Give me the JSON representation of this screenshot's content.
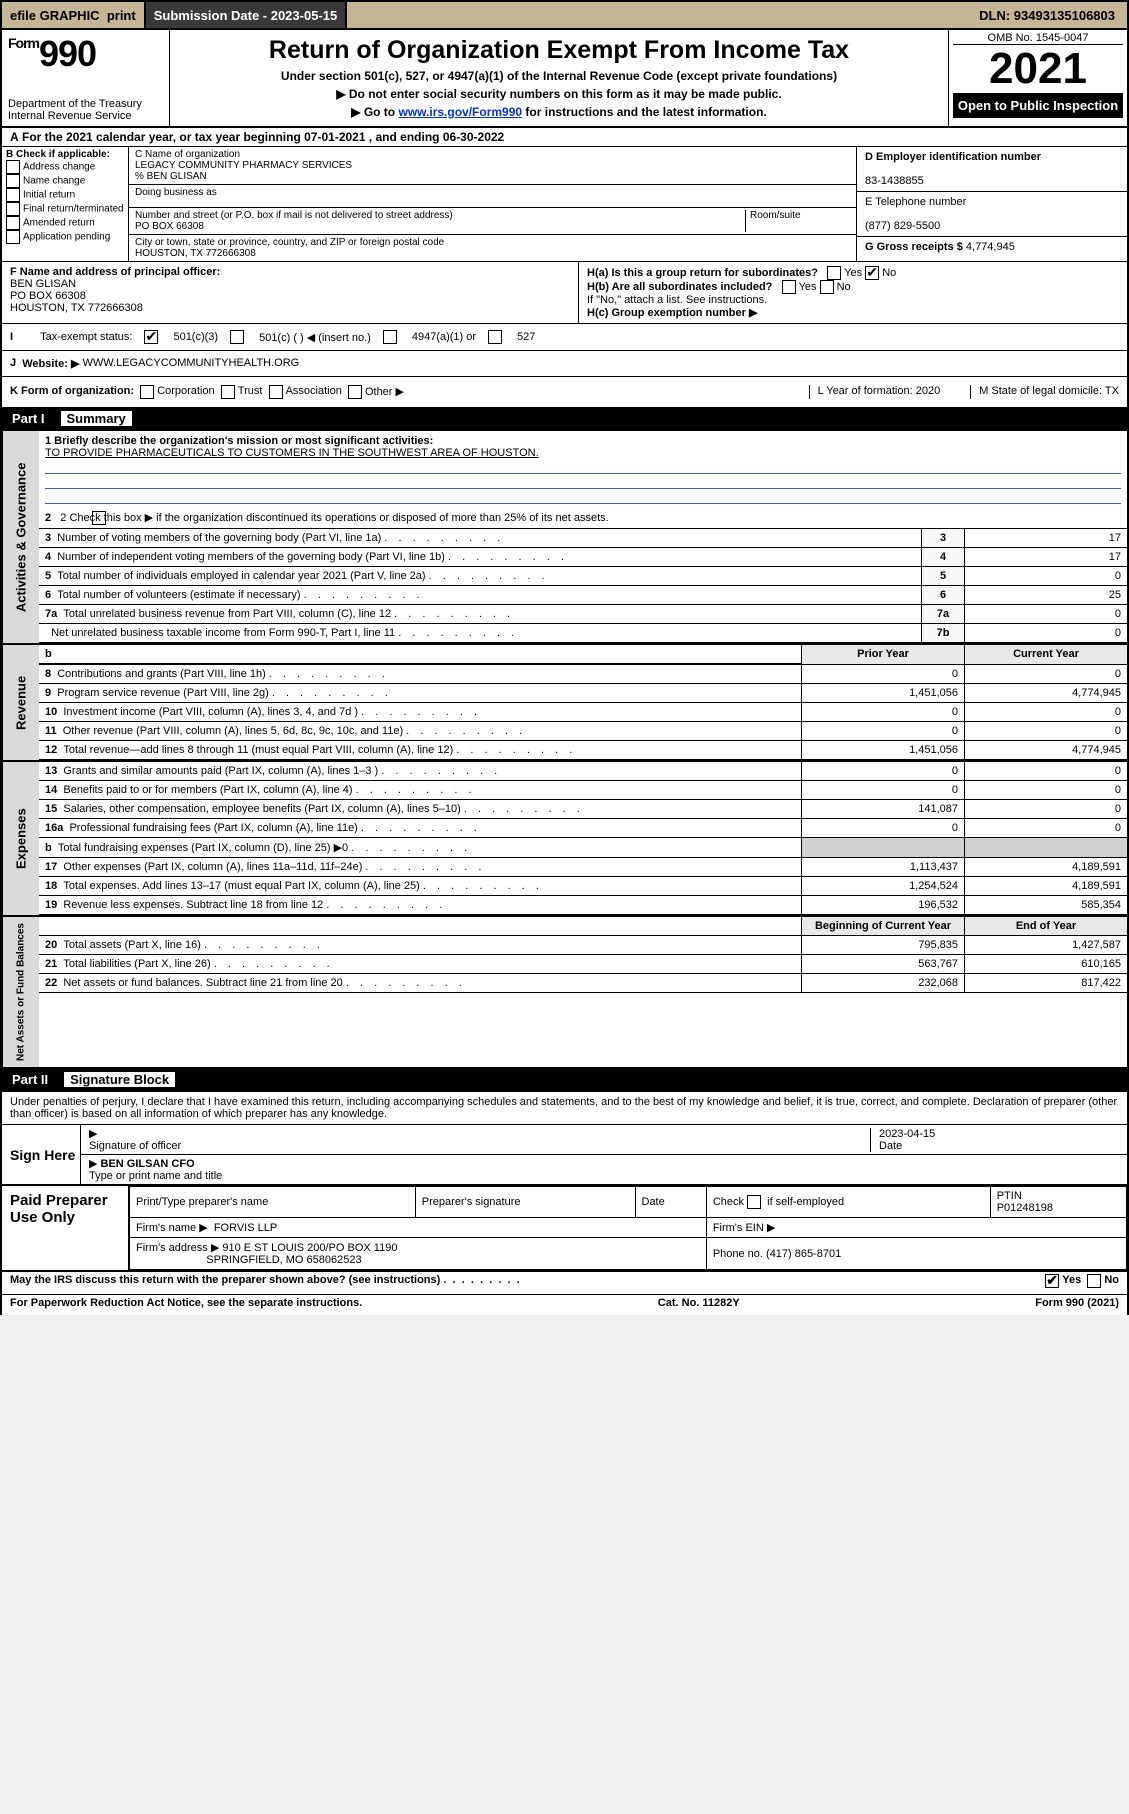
{
  "topbar": {
    "efile": "efile GRAPHIC",
    "print": "print",
    "subdate_label": "Submission Date - 2023-05-15",
    "dln_label": "DLN: 93493135106803"
  },
  "header": {
    "form_label": "Form",
    "form_number": "990",
    "dept": "Department of the Treasury",
    "irs": "Internal Revenue Service",
    "title": "Return of Organization Exempt From Income Tax",
    "sub1": "Under section 501(c), 527, or 4947(a)(1) of the Internal Revenue Code (except private foundations)",
    "sub2": "Do not enter social security numbers on this form as it may be made public.",
    "sub3_pre": "Go to ",
    "sub3_link": "www.irs.gov/Form990",
    "sub3_post": " for instructions and the latest information.",
    "omb": "OMB No. 1545-0047",
    "year": "2021",
    "open": "Open to Public Inspection"
  },
  "row_A": "For the 2021 calendar year, or tax year beginning 07-01-2021    , and ending 06-30-2022",
  "col_B": {
    "label": "B Check if applicable:",
    "items": [
      "Address change",
      "Name change",
      "Initial return",
      "Final return/terminated",
      "Amended return",
      "Application pending"
    ]
  },
  "col_C": {
    "name_label": "C Name of organization",
    "name": "LEGACY COMMUNITY PHARMACY SERVICES",
    "care_of": "% BEN GLISAN",
    "dba_label": "Doing business as",
    "street_label": "Number and street (or P.O. box if mail is not delivered to street address)",
    "room_label": "Room/suite",
    "street": "PO BOX 66308",
    "city_label": "City or town, state or province, country, and ZIP or foreign postal code",
    "city": "HOUSTON, TX  772666308"
  },
  "col_D": {
    "ein_label": "D Employer identification number",
    "ein": "83-1438855",
    "phone_label": "E Telephone number",
    "phone": "(877) 829-5500",
    "gross_label": "G Gross receipts $",
    "gross": "4,774,945"
  },
  "row_F": {
    "label": "F  Name and address of principal officer:",
    "name": "BEN GLISAN",
    "addr1": "PO BOX 66308",
    "addr2": "HOUSTON, TX  772666308"
  },
  "row_H": {
    "ha": "H(a)  Is this a group return for subordinates?",
    "hb": "H(b)  Are all subordinates included?",
    "note": "If \"No,\" attach a list. See instructions.",
    "hc": "H(c)  Group exemption number ▶"
  },
  "row_I": {
    "label": "Tax-exempt status:",
    "o1": "501(c)(3)",
    "o2": "501(c) (   ) ◀ (insert no.)",
    "o3": "4947(a)(1) or",
    "o4": "527"
  },
  "row_J": {
    "label": "Website: ▶",
    "value": "WWW.LEGACYCOMMUNITYHEALTH.ORG"
  },
  "row_K": {
    "label": "K Form of organization:",
    "opts": [
      "Corporation",
      "Trust",
      "Association",
      "Other ▶"
    ],
    "L": "L Year of formation: 2020",
    "M": "M State of legal domicile: TX"
  },
  "part1": {
    "label": "Part I",
    "title": "Summary"
  },
  "summary": {
    "line1_label": "1  Briefly describe the organization's mission or most significant activities:",
    "line1_text": "TO PROVIDE PHARMACEUTICALS TO CUSTOMERS IN THE SOUTHWEST AREA OF HOUSTON.",
    "line2": "2    Check this box ▶          if the organization discontinued its operations or disposed of more than 25% of its net assets.",
    "rows_gov": [
      {
        "n": "3",
        "desc": "Number of voting members of the governing body (Part VI, line 1a)",
        "box": "3",
        "val": "17"
      },
      {
        "n": "4",
        "desc": "Number of independent voting members of the governing body (Part VI, line 1b)",
        "box": "4",
        "val": "17"
      },
      {
        "n": "5",
        "desc": "Total number of individuals employed in calendar year 2021 (Part V, line 2a)",
        "box": "5",
        "val": "0"
      },
      {
        "n": "6",
        "desc": "Total number of volunteers (estimate if necessary)",
        "box": "6",
        "val": "25"
      },
      {
        "n": "7a",
        "desc": "Total unrelated business revenue from Part VIII, column (C), line 12",
        "box": "7a",
        "val": "0"
      },
      {
        "n": "",
        "desc": "Net unrelated business taxable income from Form 990-T, Part I, line 11",
        "box": "7b",
        "val": "0"
      }
    ],
    "hdr_prior": "Prior Year",
    "hdr_current": "Current Year",
    "rows_rev": [
      {
        "n": "8",
        "desc": "Contributions and grants (Part VIII, line 1h)",
        "p": "0",
        "c": "0"
      },
      {
        "n": "9",
        "desc": "Program service revenue (Part VIII, line 2g)",
        "p": "1,451,056",
        "c": "4,774,945"
      },
      {
        "n": "10",
        "desc": "Investment income (Part VIII, column (A), lines 3, 4, and 7d )",
        "p": "0",
        "c": "0"
      },
      {
        "n": "11",
        "desc": "Other revenue (Part VIII, column (A), lines 5, 6d, 8c, 9c, 10c, and 11e)",
        "p": "0",
        "c": "0"
      },
      {
        "n": "12",
        "desc": "Total revenue—add lines 8 through 11 (must equal Part VIII, column (A), line 12)",
        "p": "1,451,056",
        "c": "4,774,945"
      }
    ],
    "rows_exp": [
      {
        "n": "13",
        "desc": "Grants and similar amounts paid (Part IX, column (A), lines 1–3 )",
        "p": "0",
        "c": "0"
      },
      {
        "n": "14",
        "desc": "Benefits paid to or for members (Part IX, column (A), line 4)",
        "p": "0",
        "c": "0"
      },
      {
        "n": "15",
        "desc": "Salaries, other compensation, employee benefits (Part IX, column (A), lines 5–10)",
        "p": "141,087",
        "c": "0"
      },
      {
        "n": "16a",
        "desc": "Professional fundraising fees (Part IX, column (A), line 11e)",
        "p": "0",
        "c": "0"
      },
      {
        "n": "b",
        "desc": "Total fundraising expenses (Part IX, column (D), line 25) ▶0",
        "p": "",
        "c": ""
      },
      {
        "n": "17",
        "desc": "Other expenses (Part IX, column (A), lines 11a–11d, 11f–24e)",
        "p": "1,113,437",
        "c": "4,189,591"
      },
      {
        "n": "18",
        "desc": "Total expenses. Add lines 13–17 (must equal Part IX, column (A), line 25)",
        "p": "1,254,524",
        "c": "4,189,591"
      },
      {
        "n": "19",
        "desc": "Revenue less expenses. Subtract line 18 from line 12",
        "p": "196,532",
        "c": "585,354"
      }
    ],
    "hdr_begin": "Beginning of Current Year",
    "hdr_end": "End of Year",
    "rows_net": [
      {
        "n": "20",
        "desc": "Total assets (Part X, line 16)",
        "p": "795,835",
        "c": "1,427,587"
      },
      {
        "n": "21",
        "desc": "Total liabilities (Part X, line 26)",
        "p": "563,767",
        "c": "610,165"
      },
      {
        "n": "22",
        "desc": "Net assets or fund balances. Subtract line 21 from line 20",
        "p": "232,068",
        "c": "817,422"
      }
    ]
  },
  "side_labels": {
    "gov": "Activities & Governance",
    "rev": "Revenue",
    "exp": "Expenses",
    "net": "Net Assets or Fund Balances"
  },
  "part2": {
    "label": "Part II",
    "title": "Signature Block"
  },
  "sig": {
    "intro": "Under penalties of perjury, I declare that I have examined this return, including accompanying schedules and statements, and to the best of my knowledge and belief, it is true, correct, and complete. Declaration of preparer (other than officer) is based on all information of which preparer has any knowledge.",
    "sign_here": "Sign Here",
    "sig_officer": "Signature of officer",
    "date": "2023-04-15",
    "date_label": "Date",
    "name": "BEN GILSAN CFO",
    "name_label": "Type or print name and title"
  },
  "paid": {
    "label": "Paid Preparer Use Only",
    "h1": "Print/Type preparer's name",
    "h2": "Preparer's signature",
    "h3": "Date",
    "h4a": "Check",
    "h4b": "if self-employed",
    "h5": "PTIN",
    "ptin": "P01248198",
    "firm_label": "Firm's name    ▶",
    "firm": "FORVIS LLP",
    "ein_label": "Firm's EIN ▶",
    "addr_label": "Firm's address ▶",
    "addr1": "910 E ST LOUIS 200/PO BOX 1190",
    "addr2": "SPRINGFIELD, MO  658062523",
    "phone_label": "Phone no.",
    "phone": "(417) 865-8701"
  },
  "may_discuss": "May the IRS discuss this return with the preparer shown above? (see instructions)",
  "footer": {
    "left": "For Paperwork Reduction Act Notice, see the separate instructions.",
    "mid": "Cat. No. 11282Y",
    "right": "Form 990 (2021)"
  },
  "colors": {
    "topbar_bg": "#c4b696",
    "link": "#0033cc",
    "rule_blue": "#3a5fcd"
  }
}
